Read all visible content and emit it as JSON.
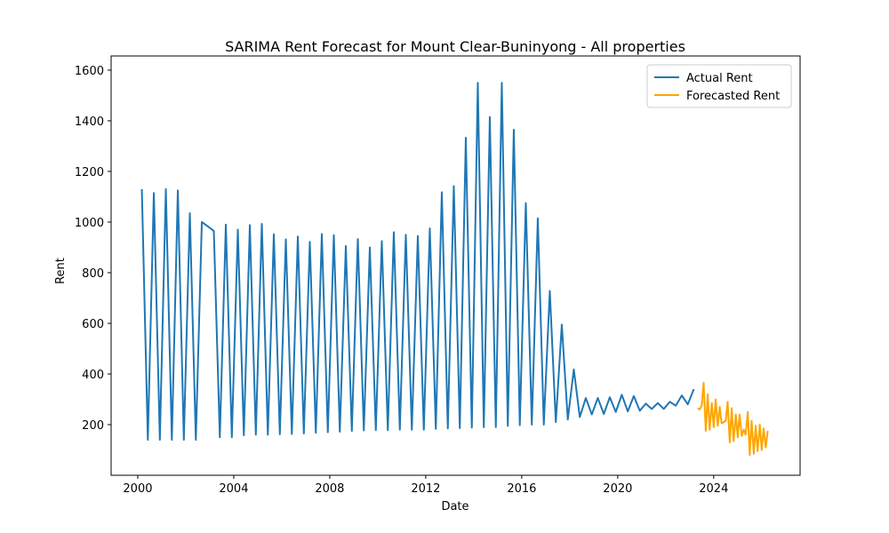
{
  "chart_data": {
    "type": "line",
    "title": "SARIMA Rent Forecast for Mount Clear-Buninyong - All properties",
    "xlabel": "Date",
    "ylabel": "Rent",
    "xlim": [
      1998.89,
      2027.6
    ],
    "ylim": [
      0,
      1656
    ],
    "xticks": [
      2000,
      2004,
      2008,
      2012,
      2016,
      2020,
      2024
    ],
    "yticks": [
      200,
      400,
      600,
      800,
      1000,
      1200,
      1400,
      1600
    ],
    "legend": "upper right",
    "series": [
      {
        "name": "Actual Rent",
        "color": "#1f77b4",
        "x": [
          2000.17,
          2000.42,
          2000.67,
          2000.92,
          2001.17,
          2001.42,
          2001.67,
          2001.92,
          2002.17,
          2002.42,
          2002.67,
          2002.92,
          2003.17,
          2003.42,
          2003.67,
          2003.92,
          2004.17,
          2004.42,
          2004.67,
          2004.92,
          2005.17,
          2005.42,
          2005.67,
          2005.92,
          2006.17,
          2006.42,
          2006.67,
          2006.92,
          2007.17,
          2007.42,
          2007.67,
          2007.92,
          2008.17,
          2008.42,
          2008.67,
          2008.92,
          2009.17,
          2009.42,
          2009.67,
          2009.92,
          2010.17,
          2010.42,
          2010.67,
          2010.92,
          2011.17,
          2011.42,
          2011.67,
          2011.92,
          2012.17,
          2012.42,
          2012.67,
          2012.92,
          2013.17,
          2013.42,
          2013.67,
          2013.92,
          2014.17,
          2014.42,
          2014.67,
          2014.92,
          2015.17,
          2015.42,
          2015.67,
          2015.92,
          2016.17,
          2016.42,
          2016.67,
          2016.92,
          2017.17,
          2017.42,
          2017.67,
          2017.92,
          2018.17,
          2018.42,
          2018.67,
          2018.92,
          2019.17,
          2019.42,
          2019.67,
          2019.92,
          2020.17,
          2020.42,
          2020.67,
          2020.92,
          2021.17,
          2021.42,
          2021.67,
          2021.92,
          2022.17,
          2022.42,
          2022.67,
          2022.92,
          2023.17
        ],
        "values": [
          1130,
          140,
          1115,
          140,
          1130,
          140,
          1125,
          140,
          1035,
          140,
          1000,
          983,
          965,
          150,
          990,
          150,
          970,
          158,
          988,
          160,
          993,
          160,
          952,
          162,
          932,
          163,
          943,
          165,
          922,
          168,
          953,
          170,
          948,
          172,
          905,
          175,
          933,
          177,
          900,
          178,
          925,
          178,
          960,
          180,
          950,
          180,
          945,
          180,
          975,
          183,
          1118,
          185,
          1142,
          186,
          1333,
          188,
          1550,
          190,
          1415,
          190,
          1550,
          195,
          1365,
          198,
          1075,
          200,
          1015,
          200,
          728,
          210,
          595,
          220,
          418,
          230,
          305,
          240,
          305,
          242,
          308,
          250,
          318,
          252,
          313,
          255,
          283,
          262,
          285,
          262,
          290,
          275,
          315,
          280,
          340
        ]
      },
      {
        "name": "Forecasted Rent",
        "color": "#ffa500",
        "x": [
          2023.33,
          2023.42,
          2023.5,
          2023.58,
          2023.67,
          2023.75,
          2023.83,
          2023.92,
          2024,
          2024.08,
          2024.17,
          2024.25,
          2024.33,
          2024.42,
          2024.5,
          2024.58,
          2024.67,
          2024.75,
          2024.83,
          2024.92,
          2025,
          2025.08,
          2025.17,
          2025.25,
          2025.33,
          2025.42,
          2025.5,
          2025.58,
          2025.67,
          2025.75,
          2025.83,
          2025.92,
          2026,
          2026.08,
          2026.17,
          2026.25
        ],
        "values": [
          265,
          260,
          275,
          365,
          175,
          320,
          180,
          285,
          190,
          300,
          195,
          270,
          205,
          210,
          215,
          290,
          130,
          265,
          135,
          240,
          150,
          240,
          155,
          180,
          160,
          250,
          80,
          215,
          85,
          195,
          95,
          200,
          100,
          185,
          110,
          175
        ]
      }
    ]
  }
}
